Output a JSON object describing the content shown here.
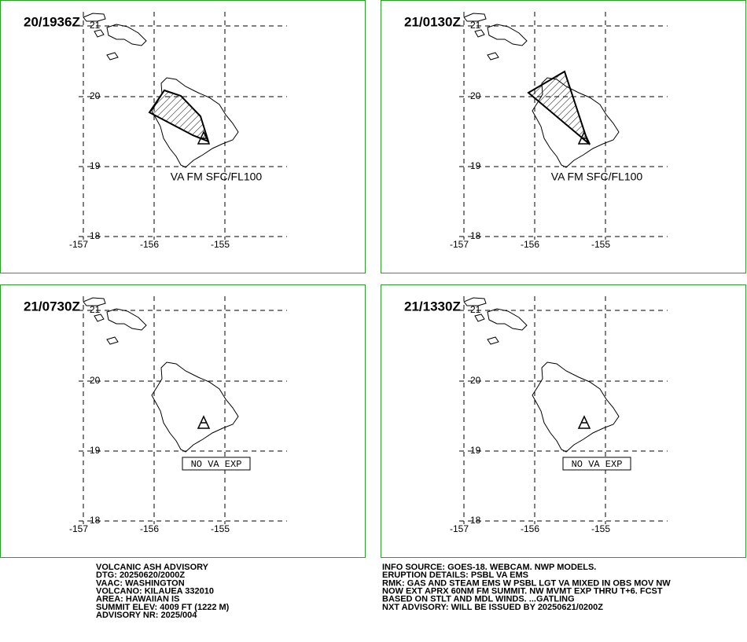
{
  "panels": [
    {
      "time": "20/1936Z",
      "label": "VA FM SFC/FL100"
    },
    {
      "time": "21/0130Z",
      "label": "VA FM SFC/FL100"
    },
    {
      "time": "21/0730Z",
      "label": "NO VA EXP"
    },
    {
      "time": "21/1330Z",
      "label": "NO VA EXP"
    }
  ],
  "grid": {
    "lat_labels": [
      "21",
      "20",
      "19",
      "18"
    ],
    "lon_labels": [
      "-157",
      "-156",
      "-155"
    ]
  },
  "advisory_left": [
    "VOLCANIC ASH ADVISORY",
    "DTG: 20250620/2000Z",
    "VAAC: WASHINGTON",
    "VOLCANO: KILAUEA 332010",
    "AREA: HAWAIIAN IS",
    "SUMMIT ELEV: 4009 FT (1222 M)",
    "ADVISORY NR: 2025/004"
  ],
  "advisory_right": [
    "INFO SOURCE: GOES-18. WEBCAM. NWP MODELS.",
    "ERUPTION DETAILS: PSBL VA EMS",
    "RMK: GAS AND STEAM EMS W PSBL LGT VA MIXED IN OBS MOV NW",
    "NOW EXT APRX 60NM FM SUMMIT. NW MVMT EXP THRU T+6. FCST",
    "BASED ON STLT AND MDL WINDS. ...GATLING",
    "NXT ADVISORY: WILL BE ISSUED BY 20250621/0200Z"
  ]
}
